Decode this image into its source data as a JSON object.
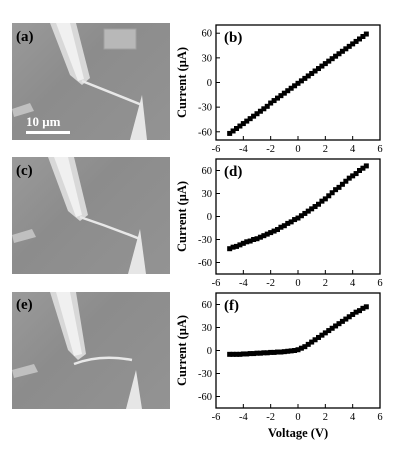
{
  "figure": {
    "panels": [
      {
        "label": "(a)",
        "type": "sem-image",
        "scale_bar": {
          "text": "10 μm"
        }
      },
      {
        "label": "(c)",
        "type": "sem-image"
      },
      {
        "label": "(e)",
        "type": "sem-image"
      }
    ]
  },
  "chart_data": [
    {
      "label": "(b)",
      "type": "scatter",
      "ylabel": "Current (μA)",
      "xlabel": "",
      "xlim": [
        -6,
        6
      ],
      "ylim": [
        -70,
        70
      ],
      "xticks": [
        -6,
        -4,
        -2,
        0,
        2,
        4,
        6
      ],
      "yticks": [
        -60,
        -30,
        0,
        30,
        60
      ],
      "series": [
        {
          "color": "#000000",
          "points": [
            [
              -5,
              -62
            ],
            [
              -4.75,
              -59
            ],
            [
              -4.5,
              -56
            ],
            [
              -4.25,
              -53
            ],
            [
              -4,
              -50
            ],
            [
              -3.75,
              -47
            ],
            [
              -3.5,
              -44
            ],
            [
              -3.25,
              -41
            ],
            [
              -3,
              -38
            ],
            [
              -2.75,
              -35
            ],
            [
              -2.5,
              -32
            ],
            [
              -2.25,
              -29
            ],
            [
              -2,
              -25
            ],
            [
              -1.75,
              -22
            ],
            [
              -1.5,
              -19
            ],
            [
              -1.25,
              -16
            ],
            [
              -1,
              -13
            ],
            [
              -0.75,
              -10
            ],
            [
              -0.5,
              -7
            ],
            [
              -0.25,
              -4
            ],
            [
              0,
              -1
            ],
            [
              0.25,
              2
            ],
            [
              0.5,
              5
            ],
            [
              0.75,
              8
            ],
            [
              1,
              11
            ],
            [
              1.25,
              14
            ],
            [
              1.5,
              17
            ],
            [
              1.75,
              20
            ],
            [
              2,
              23
            ],
            [
              2.25,
              26
            ],
            [
              2.5,
              29
            ],
            [
              2.75,
              32
            ],
            [
              3,
              35
            ],
            [
              3.25,
              38
            ],
            [
              3.5,
              41
            ],
            [
              3.75,
              44
            ],
            [
              4,
              47
            ],
            [
              4.25,
              50
            ],
            [
              4.5,
              53
            ],
            [
              4.75,
              56
            ],
            [
              5,
              59
            ]
          ]
        }
      ]
    },
    {
      "label": "(d)",
      "type": "scatter",
      "ylabel": "Current (μA)",
      "xlabel": "",
      "xlim": [
        -6,
        6
      ],
      "ylim": [
        -75,
        75
      ],
      "xticks": [
        -6,
        -4,
        -2,
        0,
        2,
        4,
        6
      ],
      "yticks": [
        -60,
        -30,
        0,
        30,
        60
      ],
      "series": [
        {
          "color": "#000000",
          "points": [
            [
              -5,
              -42
            ],
            [
              -4.75,
              -40
            ],
            [
              -4.5,
              -39
            ],
            [
              -4.25,
              -37
            ],
            [
              -4,
              -35
            ],
            [
              -3.75,
              -33
            ],
            [
              -3.5,
              -32
            ],
            [
              -3.25,
              -30
            ],
            [
              -3,
              -29
            ],
            [
              -2.75,
              -27
            ],
            [
              -2.5,
              -25
            ],
            [
              -2.25,
              -23
            ],
            [
              -2,
              -21
            ],
            [
              -1.75,
              -19
            ],
            [
              -1.5,
              -17
            ],
            [
              -1.25,
              -14
            ],
            [
              -1,
              -12
            ],
            [
              -0.75,
              -9
            ],
            [
              -0.5,
              -7
            ],
            [
              -0.25,
              -4
            ],
            [
              0,
              -2
            ],
            [
              0.25,
              1
            ],
            [
              0.5,
              4
            ],
            [
              0.75,
              7
            ],
            [
              1,
              10
            ],
            [
              1.25,
              13
            ],
            [
              1.5,
              16
            ],
            [
              1.75,
              20
            ],
            [
              2,
              23
            ],
            [
              2.25,
              27
            ],
            [
              2.5,
              31
            ],
            [
              2.75,
              35
            ],
            [
              3,
              38
            ],
            [
              3.25,
              42
            ],
            [
              3.5,
              46
            ],
            [
              3.75,
              50
            ],
            [
              4,
              53
            ],
            [
              4.25,
              56
            ],
            [
              4.5,
              60
            ],
            [
              4.75,
              63
            ],
            [
              5,
              66
            ]
          ]
        }
      ]
    },
    {
      "label": "(f)",
      "type": "scatter",
      "ylabel": "Current (μA)",
      "xlabel": "Voltage (V)",
      "xlim": [
        -6,
        6
      ],
      "ylim": [
        -75,
        75
      ],
      "xticks": [
        -6,
        -4,
        -2,
        0,
        2,
        4,
        6
      ],
      "yticks": [
        -60,
        -30,
        0,
        30,
        60
      ],
      "series": [
        {
          "color": "#000000",
          "points": [
            [
              -5,
              -5
            ],
            [
              -4.75,
              -5
            ],
            [
              -4.5,
              -5
            ],
            [
              -4.25,
              -5
            ],
            [
              -4,
              -4.5
            ],
            [
              -3.75,
              -4.5
            ],
            [
              -3.5,
              -4
            ],
            [
              -3.25,
              -4
            ],
            [
              -3,
              -3.5
            ],
            [
              -2.75,
              -3.5
            ],
            [
              -2.5,
              -3
            ],
            [
              -2.25,
              -3
            ],
            [
              -2,
              -2.5
            ],
            [
              -1.75,
              -2.5
            ],
            [
              -1.5,
              -2
            ],
            [
              -1.25,
              -2
            ],
            [
              -1,
              -1.5
            ],
            [
              -0.75,
              -1
            ],
            [
              -0.5,
              -0.5
            ],
            [
              -0.25,
              0
            ],
            [
              0,
              1
            ],
            [
              0.25,
              3
            ],
            [
              0.5,
              5
            ],
            [
              0.75,
              8
            ],
            [
              1,
              11
            ],
            [
              1.25,
              14
            ],
            [
              1.5,
              17
            ],
            [
              1.75,
              20
            ],
            [
              2,
              23
            ],
            [
              2.25,
              26
            ],
            [
              2.5,
              29
            ],
            [
              2.75,
              32
            ],
            [
              3,
              35
            ],
            [
              3.25,
              38
            ],
            [
              3.5,
              41
            ],
            [
              3.75,
              44
            ],
            [
              4,
              47
            ],
            [
              4.25,
              50
            ],
            [
              4.5,
              52
            ],
            [
              4.75,
              55
            ],
            [
              5,
              57
            ]
          ]
        }
      ]
    }
  ]
}
